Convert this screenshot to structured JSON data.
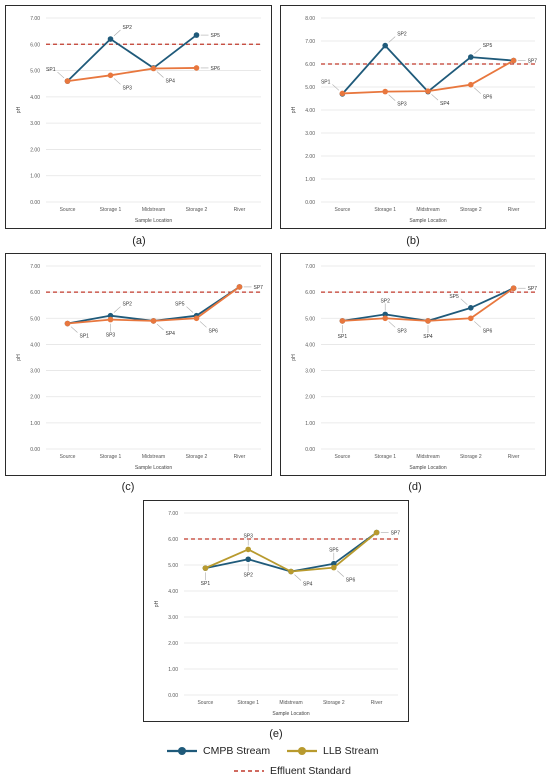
{
  "colors": {
    "cmpb": "#1f5a7a",
    "llb_ab": "#e8773e",
    "llb_e": "#b89a2e",
    "effluent": "#c0392b",
    "grid": "#e4e4e4"
  },
  "legend": {
    "cmpb_label": "CMPB Stream",
    "llb_label": "LLB Stream",
    "effluent_label": "Effluent Standard"
  },
  "chart_data": [
    {
      "id": "a",
      "caption": "(a)",
      "type": "line",
      "ylabel": "pH",
      "xlabel": "Sample Location",
      "categories": [
        "Source",
        "Storage 1",
        "Midstream",
        "Storage 2",
        "River"
      ],
      "ylim": [
        0,
        7
      ],
      "ytick_step": 1,
      "ytick_decimals": 2,
      "grid": true,
      "effluent_standard": 6.0,
      "series": [
        {
          "name": "CMPB Stream",
          "color": "cmpb",
          "values": [
            4.6,
            6.2,
            5.1,
            6.35,
            null
          ]
        },
        {
          "name": "LLB Stream",
          "color": "llb_ab",
          "values": [
            4.6,
            4.82,
            5.08,
            5.1,
            null
          ]
        }
      ],
      "annotations": [
        {
          "text": "SP1",
          "cat": 0,
          "y": 4.6,
          "pos": "nw"
        },
        {
          "text": "SP2",
          "cat": 1,
          "y": 6.2,
          "pos": "ne"
        },
        {
          "text": "SP3",
          "cat": 1,
          "y": 4.82,
          "pos": "se"
        },
        {
          "text": "SP4",
          "cat": 2,
          "y": 5.08,
          "pos": "se"
        },
        {
          "text": "SP5",
          "cat": 3,
          "y": 6.35,
          "pos": "e"
        },
        {
          "text": "SP6",
          "cat": 3,
          "y": 5.1,
          "pos": "e"
        }
      ]
    },
    {
      "id": "b",
      "caption": "(b)",
      "type": "line",
      "ylabel": "pH",
      "xlabel": "Sample Location",
      "categories": [
        "Source",
        "Storage 1",
        "Midstream",
        "Storage 2",
        "River"
      ],
      "ylim": [
        0,
        8
      ],
      "ytick_step": 1,
      "ytick_decimals": 2,
      "grid": true,
      "effluent_standard": 6.0,
      "series": [
        {
          "name": "CMPB Stream",
          "color": "cmpb",
          "values": [
            4.7,
            6.8,
            4.8,
            6.3,
            6.15
          ]
        },
        {
          "name": "LLB Stream",
          "color": "llb_ab",
          "values": [
            4.72,
            4.8,
            4.82,
            5.1,
            6.15
          ]
        }
      ],
      "annotations": [
        {
          "text": "SP1",
          "cat": 0,
          "y": 4.72,
          "pos": "nw"
        },
        {
          "text": "SP2",
          "cat": 1,
          "y": 6.8,
          "pos": "ne"
        },
        {
          "text": "SP3",
          "cat": 1,
          "y": 4.8,
          "pos": "se"
        },
        {
          "text": "SP4",
          "cat": 2,
          "y": 4.82,
          "pos": "se"
        },
        {
          "text": "SP5",
          "cat": 3,
          "y": 6.3,
          "pos": "ne"
        },
        {
          "text": "SP6",
          "cat": 3,
          "y": 5.1,
          "pos": "se"
        },
        {
          "text": "SP7",
          "cat": 4,
          "y": 6.15,
          "pos": "e"
        }
      ]
    },
    {
      "id": "c",
      "caption": "(c)",
      "type": "line",
      "ylabel": "pH",
      "xlabel": "Sample Location",
      "categories": [
        "Source",
        "Storage 1",
        "Midstream",
        "Storage 2",
        "River"
      ],
      "ylim": [
        0,
        7
      ],
      "ytick_step": 1,
      "ytick_decimals": 2,
      "grid": true,
      "effluent_standard": 6.0,
      "series": [
        {
          "name": "CMPB Stream",
          "color": "cmpb",
          "values": [
            4.8,
            5.1,
            4.9,
            5.1,
            6.2
          ]
        },
        {
          "name": "LLB Stream",
          "color": "llb_ab",
          "values": [
            4.8,
            4.95,
            4.9,
            5.0,
            6.2
          ]
        }
      ],
      "annotations": [
        {
          "text": "SP1",
          "cat": 0,
          "y": 4.8,
          "pos": "se"
        },
        {
          "text": "SP2",
          "cat": 1,
          "y": 5.1,
          "pos": "ne"
        },
        {
          "text": "SP3",
          "cat": 1,
          "y": 4.95,
          "pos": "s"
        },
        {
          "text": "SP4",
          "cat": 2,
          "y": 4.9,
          "pos": "se"
        },
        {
          "text": "SP5",
          "cat": 3,
          "y": 5.1,
          "pos": "nw"
        },
        {
          "text": "SP6",
          "cat": 3,
          "y": 5.0,
          "pos": "se"
        },
        {
          "text": "SP7",
          "cat": 4,
          "y": 6.2,
          "pos": "e"
        }
      ]
    },
    {
      "id": "d",
      "caption": "(d)",
      "type": "line",
      "ylabel": "pH",
      "xlabel": "Sample Location",
      "categories": [
        "Source",
        "Storage 1",
        "Midstream",
        "Storage 2",
        "River"
      ],
      "ylim": [
        0,
        7
      ],
      "ytick_step": 1,
      "ytick_decimals": 2,
      "grid": true,
      "effluent_standard": 6.0,
      "series": [
        {
          "name": "CMPB Stream",
          "color": "cmpb",
          "values": [
            4.9,
            5.15,
            4.9,
            5.4,
            6.15
          ]
        },
        {
          "name": "LLB Stream",
          "color": "llb_ab",
          "values": [
            4.9,
            5.0,
            4.9,
            5.0,
            6.15
          ]
        }
      ],
      "annotations": [
        {
          "text": "SP1",
          "cat": 0,
          "y": 4.9,
          "pos": "s"
        },
        {
          "text": "SP2",
          "cat": 1,
          "y": 5.15,
          "pos": "n"
        },
        {
          "text": "SP3",
          "cat": 1,
          "y": 5.0,
          "pos": "se"
        },
        {
          "text": "SP4",
          "cat": 2,
          "y": 4.9,
          "pos": "s"
        },
        {
          "text": "SP5",
          "cat": 3,
          "y": 5.4,
          "pos": "nw"
        },
        {
          "text": "SP6",
          "cat": 3,
          "y": 5.0,
          "pos": "se"
        },
        {
          "text": "SP7",
          "cat": 4,
          "y": 6.15,
          "pos": "e"
        }
      ]
    },
    {
      "id": "e",
      "caption": "(e)",
      "type": "line",
      "ylabel": "pH",
      "xlabel": "Sample Location",
      "categories": [
        "Source",
        "Storage 1",
        "Midstream",
        "Storage 2",
        "River"
      ],
      "ylim": [
        0,
        7
      ],
      "ytick_step": 1,
      "ytick_decimals": 2,
      "grid": true,
      "effluent_standard": 6.0,
      "series": [
        {
          "name": "CMPB Stream",
          "color": "cmpb",
          "values": [
            4.88,
            5.22,
            4.75,
            5.05,
            6.25
          ]
        },
        {
          "name": "LLB Stream",
          "color": "llb_e",
          "values": [
            4.88,
            5.6,
            4.75,
            4.9,
            6.25
          ]
        }
      ],
      "annotations": [
        {
          "text": "SP1",
          "cat": 0,
          "y": 4.88,
          "pos": "s"
        },
        {
          "text": "SP2",
          "cat": 1,
          "y": 5.22,
          "pos": "s"
        },
        {
          "text": "SP3",
          "cat": 1,
          "y": 5.6,
          "pos": "n"
        },
        {
          "text": "SP4",
          "cat": 2,
          "y": 4.75,
          "pos": "se"
        },
        {
          "text": "SP5",
          "cat": 3,
          "y": 5.05,
          "pos": "n"
        },
        {
          "text": "SP6",
          "cat": 3,
          "y": 4.9,
          "pos": "se"
        },
        {
          "text": "SP7",
          "cat": 4,
          "y": 6.25,
          "pos": "e"
        }
      ]
    }
  ]
}
